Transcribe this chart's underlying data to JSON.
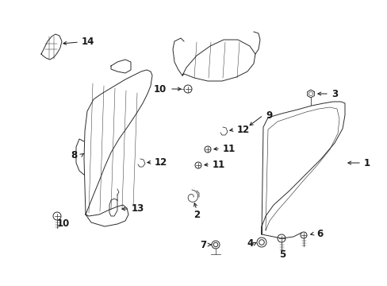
{
  "bg_color": "#ffffff",
  "figsize": [
    4.89,
    3.6
  ],
  "dpi": 100,
  "line_color": "#2a2a2a",
  "label_color": "#1a1a1a",
  "arrow_color": "#1a1a1a",
  "lw": 0.7
}
